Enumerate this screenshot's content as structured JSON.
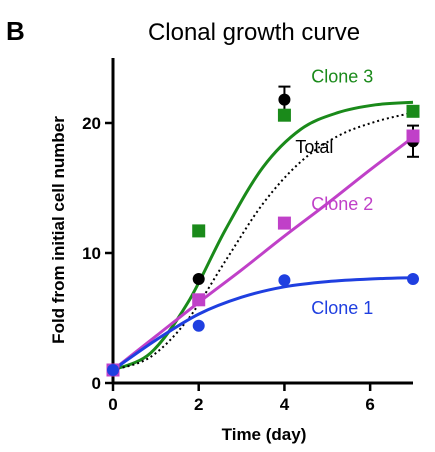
{
  "panel_letter": "B",
  "chart_data": {
    "type": "scatter",
    "title": "Clonal growth curve",
    "xlabel": "Time (day)",
    "ylabel": "Fold from initial cell number",
    "xlim": [
      0,
      7
    ],
    "ylim": [
      0,
      25
    ],
    "xticks": [
      0,
      2,
      4,
      6
    ],
    "yticks": [
      0,
      10,
      20
    ],
    "grid": false,
    "series": [
      {
        "name": "Clone 3",
        "marker": "square",
        "color": "#1a8a1a",
        "line_style": "solid",
        "x": [
          0,
          2,
          4,
          7
        ],
        "y": [
          1,
          11.7,
          20.6,
          20.9
        ],
        "fit_curve_y": [
          1,
          2.3,
          6.2,
          11.8,
          16.6,
          19.5,
          20.8,
          21.4,
          21.6
        ]
      },
      {
        "name": "Total",
        "marker": "circle",
        "color": "#000000",
        "line_style": "dotted",
        "x": [
          0,
          2,
          4,
          7
        ],
        "y": [
          1,
          8,
          21.8,
          18.6
        ],
        "error": [
          0,
          0,
          1,
          1.2
        ],
        "fit_curve_y": [
          1,
          2.0,
          4.9,
          9.4,
          13.8,
          17.0,
          19.0,
          20.1,
          20.8
        ]
      },
      {
        "name": "Clone 2",
        "marker": "square",
        "color": "#c040c8",
        "line_style": "solid",
        "x": [
          0,
          2,
          4,
          7
        ],
        "y": [
          1,
          6.4,
          12.3,
          19
        ],
        "fit_curve_y": [
          1,
          3.6,
          6.2,
          8.7,
          11.3,
          13.8,
          16.4,
          18.9
        ]
      },
      {
        "name": "Clone 1",
        "marker": "circle",
        "color": "#1f3fe0",
        "line_style": "solid",
        "x": [
          0,
          2,
          4,
          7
        ],
        "y": [
          1,
          4.4,
          7.9,
          8
        ],
        "fit_curve_y": [
          1,
          3.3,
          5.3,
          6.6,
          7.4,
          7.8,
          8.0,
          8.1
        ]
      }
    ]
  }
}
